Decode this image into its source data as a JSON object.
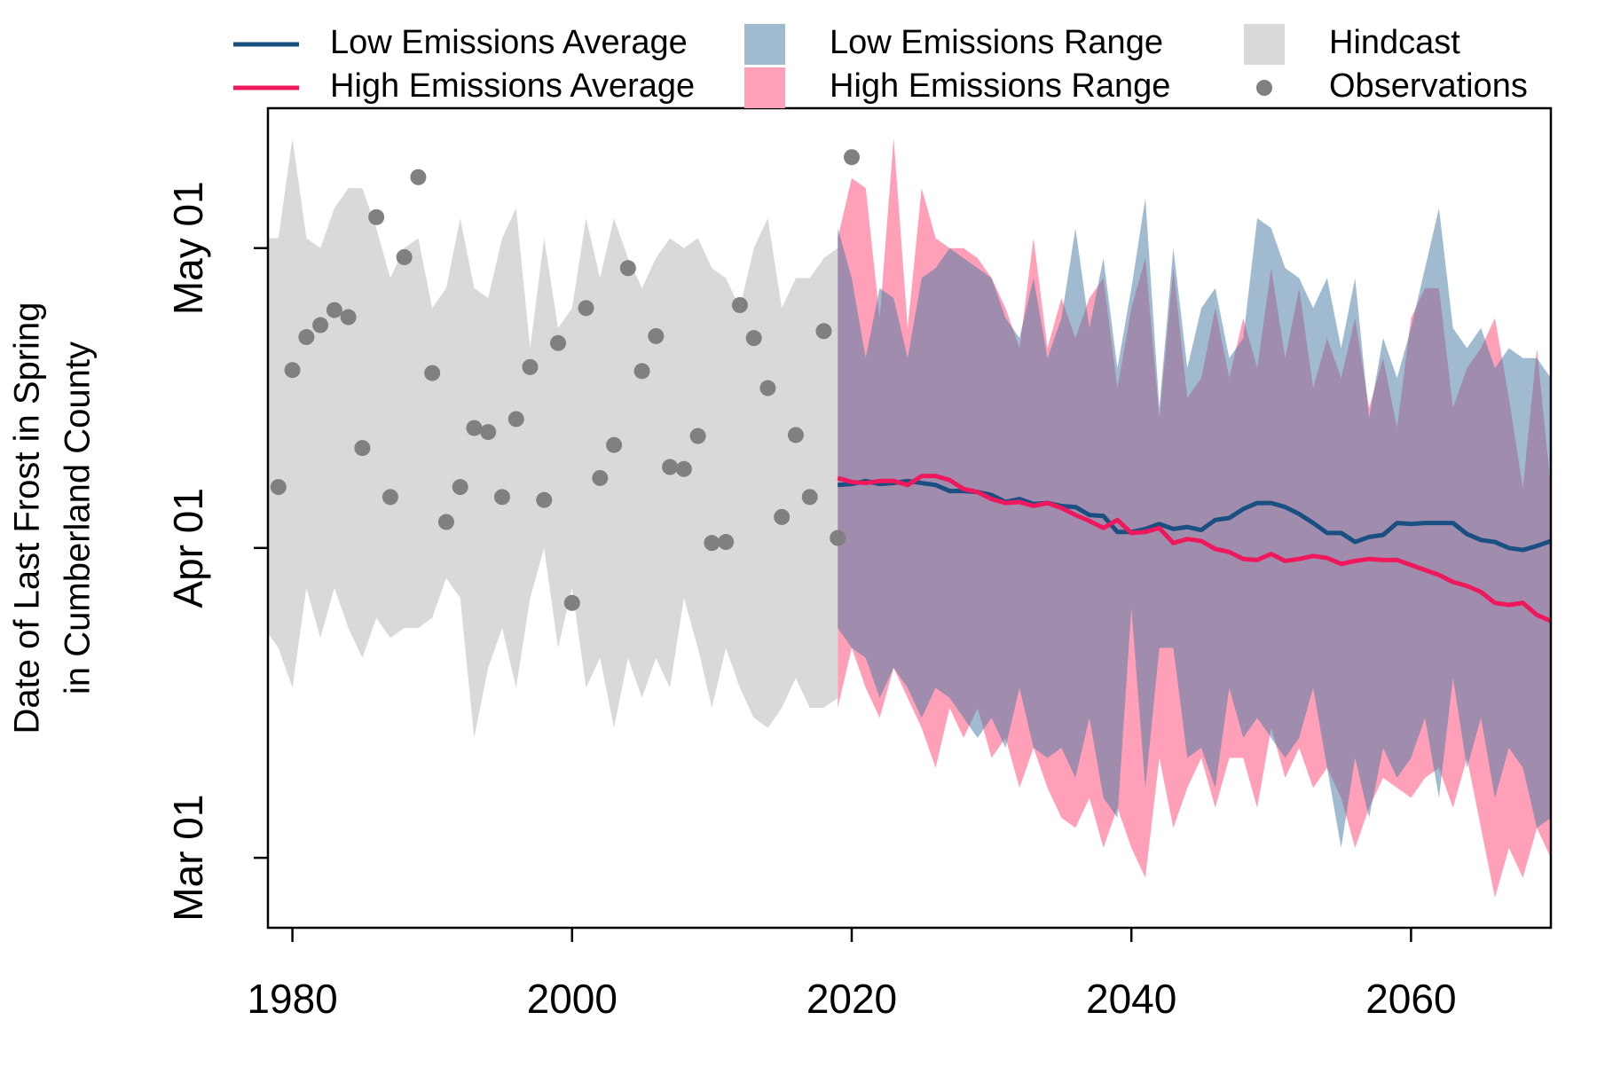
{
  "chart_data": {
    "type": "line",
    "ylabel": [
      "Date of Last Frost in Spring",
      "in Cumberland County"
    ],
    "xlim": [
      1978.25,
      2070
    ],
    "xticks": [
      1980,
      2000,
      2020,
      2040,
      2060
    ],
    "ylim": [
      53,
      135
    ],
    "yticks": [
      {
        "value": 60,
        "label": "Mar 01"
      },
      {
        "value": 91,
        "label": "Apr 01"
      },
      {
        "value": 121,
        "label": "May 01"
      }
    ],
    "series": [
      {
        "name": "Low Emissions Average",
        "kind": "line",
        "color": "#1a4f82",
        "x": [
          2019,
          2020,
          2021,
          2022,
          2023,
          2024,
          2025,
          2026,
          2027,
          2028,
          2029,
          2030,
          2031,
          2032,
          2033,
          2034,
          2035,
          2036,
          2037,
          2038,
          2039,
          2040,
          2041,
          2042,
          2043,
          2044,
          2045,
          2046,
          2047,
          2048,
          2049,
          2050,
          2051,
          2052,
          2053,
          2054,
          2055,
          2056,
          2057,
          2058,
          2059,
          2060,
          2061,
          2062,
          2063,
          2064,
          2065,
          2066,
          2067,
          2068,
          2069,
          2070
        ],
        "values": [
          97.3,
          97.4,
          97.7,
          97.4,
          97.5,
          97.7,
          97.5,
          97.3,
          96.7,
          96.7,
          96.6,
          96.3,
          95.6,
          95.9,
          95.4,
          95.5,
          95.2,
          95.1,
          94.3,
          94.2,
          92.6,
          92.6,
          92.9,
          93.4,
          92.9,
          93.1,
          92.8,
          93.8,
          94.0,
          94.9,
          95.5,
          95.5,
          95.1,
          94.4,
          93.5,
          92.5,
          92.5,
          91.6,
          92.1,
          92.3,
          93.5,
          93.4,
          93.5,
          93.5,
          93.5,
          92.4,
          91.8,
          91.6,
          91.0,
          90.8,
          91.2,
          91.7
        ]
      },
      {
        "name": "High Emissions Average",
        "kind": "line",
        "color": "#f0185c",
        "x": [
          2019,
          2020,
          2021,
          2022,
          2023,
          2024,
          2025,
          2026,
          2027,
          2028,
          2029,
          2030,
          2031,
          2032,
          2033,
          2034,
          2035,
          2036,
          2037,
          2038,
          2039,
          2040,
          2041,
          2042,
          2043,
          2044,
          2045,
          2046,
          2047,
          2048,
          2049,
          2050,
          2051,
          2052,
          2053,
          2054,
          2055,
          2056,
          2057,
          2058,
          2059,
          2060,
          2061,
          2062,
          2063,
          2064,
          2065,
          2066,
          2067,
          2068,
          2069,
          2070
        ],
        "values": [
          98.0,
          97.6,
          97.5,
          97.7,
          97.7,
          97.3,
          98.2,
          98.2,
          97.8,
          96.9,
          96.6,
          95.9,
          95.5,
          95.6,
          95.2,
          95.5,
          95.0,
          94.3,
          93.7,
          93.0,
          93.8,
          92.5,
          92.6,
          93.0,
          91.5,
          91.9,
          91.7,
          90.9,
          90.6,
          89.9,
          89.8,
          90.4,
          89.7,
          89.9,
          90.2,
          90.0,
          89.4,
          89.7,
          89.9,
          89.8,
          89.8,
          89.3,
          88.8,
          88.3,
          87.6,
          87.2,
          86.6,
          85.5,
          85.3,
          85.5,
          84.3,
          83.7
        ]
      },
      {
        "name": "Low Emissions Range",
        "kind": "band",
        "color": "#4177a1",
        "opacity": 0.5,
        "x": [
          2019,
          2020,
          2021,
          2022,
          2023,
          2024,
          2025,
          2026,
          2027,
          2028,
          2029,
          2030,
          2031,
          2032,
          2033,
          2034,
          2035,
          2036,
          2037,
          2038,
          2039,
          2040,
          2041,
          2042,
          2043,
          2044,
          2045,
          2046,
          2047,
          2048,
          2049,
          2050,
          2051,
          2052,
          2053,
          2054,
          2055,
          2056,
          2057,
          2058,
          2059,
          2060,
          2061,
          2062,
          2063,
          2064,
          2065,
          2066,
          2067,
          2068,
          2069,
          2070
        ],
        "upper": [
          123,
          118,
          110,
          117,
          116,
          110,
          118,
          119,
          121,
          120,
          119,
          118,
          114,
          112,
          118,
          110,
          114,
          123,
          113,
          120,
          109,
          117,
          126,
          105,
          121,
          109,
          115,
          117,
          110,
          112,
          124,
          123,
          119,
          118,
          115,
          118,
          111,
          118,
          104,
          112,
          108,
          113,
          119,
          125,
          113,
          111,
          113,
          109,
          111,
          110,
          110,
          108
        ],
        "lower": [
          83,
          81,
          80,
          76,
          79,
          77,
          74,
          77,
          76,
          74,
          72,
          74,
          71,
          77,
          71,
          70,
          71,
          68,
          74,
          66,
          64,
          85,
          67,
          81,
          81,
          70,
          71,
          67,
          77,
          72,
          74,
          72,
          70,
          72,
          77,
          69,
          61,
          70,
          64,
          71,
          68,
          70,
          74,
          66,
          78,
          69,
          74,
          66,
          71,
          69,
          63,
          64
        ]
      },
      {
        "name": "High Emissions Range",
        "kind": "band",
        "color": "#ffa0b8",
        "opacity": 1,
        "x": [
          2019,
          2020,
          2021,
          2022,
          2023,
          2024,
          2025,
          2026,
          2027,
          2028,
          2029,
          2030,
          2031,
          2032,
          2033,
          2034,
          2035,
          2036,
          2037,
          2038,
          2039,
          2040,
          2041,
          2042,
          2043,
          2044,
          2045,
          2046,
          2047,
          2048,
          2049,
          2050,
          2051,
          2052,
          2053,
          2054,
          2055,
          2056,
          2057,
          2058,
          2059,
          2060,
          2061,
          2062,
          2063,
          2064,
          2065,
          2066,
          2067,
          2068,
          2069,
          2070
        ],
        "upper": [
          122,
          128,
          127,
          114,
          132,
          113,
          127,
          122,
          121,
          121,
          120,
          118,
          115,
          111,
          122,
          111,
          116,
          112,
          116,
          118,
          107,
          115,
          120,
          104,
          119,
          106,
          108,
          115,
          108,
          114,
          109,
          119,
          110,
          117,
          107,
          112,
          108,
          114,
          105,
          110,
          103,
          114,
          117,
          117,
          105,
          109,
          111,
          114,
          106,
          97,
          111,
          97
        ],
        "lower": [
          75,
          81,
          77,
          74,
          79,
          76,
          73,
          69,
          75,
          72,
          75,
          70,
          72,
          67,
          71,
          67,
          64,
          63,
          66,
          61,
          65,
          61,
          58,
          70,
          63,
          67,
          70,
          65,
          70,
          70,
          65,
          73,
          68,
          71,
          67,
          69,
          66,
          61,
          65,
          68,
          67,
          66,
          68,
          69,
          65,
          70,
          63,
          56,
          61,
          58,
          63,
          60
        ]
      },
      {
        "name": "Hindcast",
        "kind": "band",
        "color": "#d9d9d9",
        "opacity": 1,
        "x": [
          1978,
          1979,
          1980,
          1981,
          1982,
          1983,
          1984,
          1985,
          1986,
          1987,
          1988,
          1989,
          1990,
          1991,
          1992,
          1993,
          1994,
          1995,
          1996,
          1997,
          1998,
          1999,
          2000,
          2001,
          2002,
          2003,
          2004,
          2005,
          2006,
          2007,
          2008,
          2009,
          2010,
          2011,
          2012,
          2013,
          2014,
          2015,
          2016,
          2017,
          2018,
          2019
        ],
        "upper": [
          122,
          122,
          132,
          122,
          121,
          125,
          127,
          127,
          123,
          118,
          121,
          122,
          115,
          117,
          124,
          117,
          116,
          122,
          125,
          111,
          122,
          113,
          115,
          124,
          118,
          124,
          120,
          117,
          120,
          122,
          121,
          122,
          119,
          118,
          115,
          121,
          124,
          115,
          118,
          118,
          120,
          121
        ],
        "lower": [
          83,
          81,
          77,
          87,
          82,
          87,
          83,
          80,
          84,
          82,
          83,
          83,
          84,
          88,
          86,
          72,
          79,
          83,
          77,
          86,
          91,
          81,
          87,
          77,
          80,
          73,
          80,
          76,
          80,
          77,
          86,
          81,
          75,
          81,
          77,
          74,
          73,
          75,
          78,
          75,
          75,
          76
        ]
      },
      {
        "name": "Observations",
        "kind": "scatter",
        "color": "#808080",
        "x": [
          1979,
          1980,
          1981,
          1982,
          1983,
          1984,
          1985,
          1986,
          1987,
          1988,
          1989,
          1990,
          1991,
          1992,
          1993,
          1994,
          1995,
          1996,
          1997,
          1998,
          1999,
          2000,
          2001,
          2002,
          2003,
          2004,
          2005,
          2006,
          2007,
          2008,
          2009,
          2010,
          2011,
          2012,
          2013,
          2014,
          2015,
          2016,
          2017,
          2018,
          2019,
          2020
        ],
        "values": [
          97.1,
          108.8,
          112.1,
          113.3,
          114.8,
          114.1,
          101.0,
          124.1,
          96.1,
          120.1,
          128.1,
          108.5,
          93.6,
          97.1,
          103.0,
          102.6,
          96.1,
          103.9,
          109.1,
          95.8,
          111.5,
          85.5,
          115.0,
          98.0,
          101.3,
          119.0,
          108.7,
          112.2,
          99.1,
          98.9,
          102.2,
          91.5,
          91.6,
          115.3,
          112.0,
          107.0,
          94.1,
          102.3,
          96.1,
          112.7,
          92.0,
          130.1
        ]
      }
    ]
  }
}
